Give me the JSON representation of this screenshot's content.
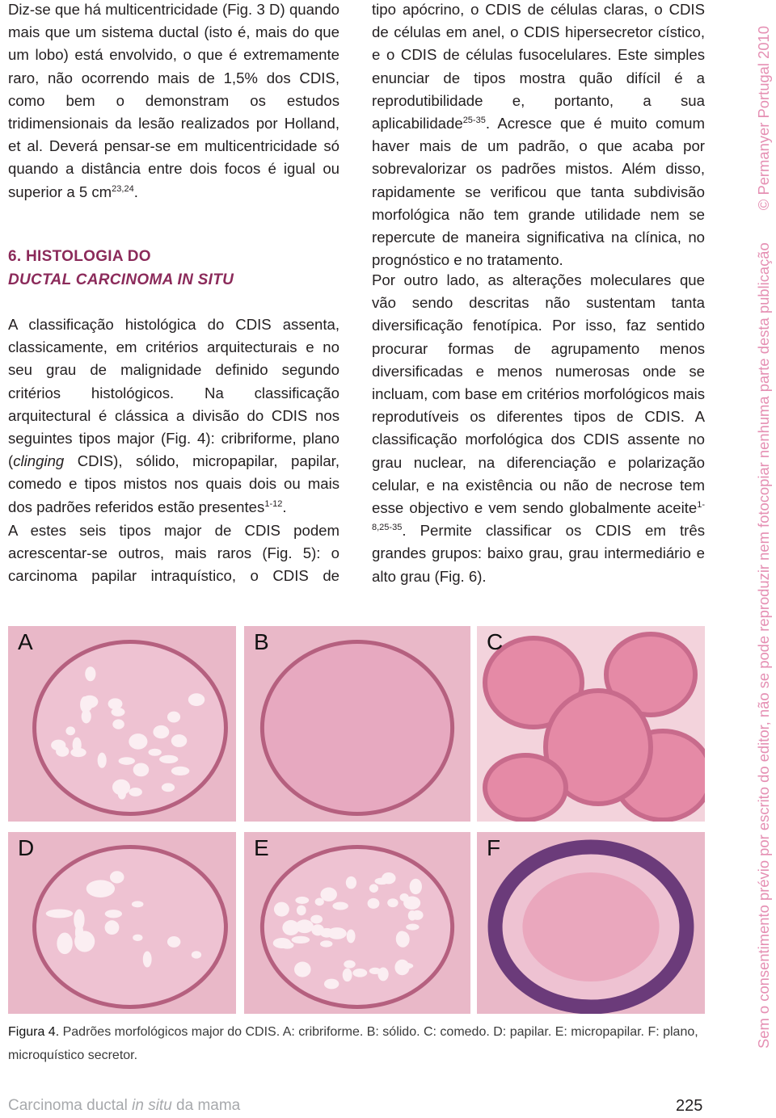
{
  "column_left": {
    "paragraphs": [
      [
        "Diz-se que há multicentricidade (Fig. 3 D) quando mais que um sistema ductal (isto é, mais do que um lobo) está envolvido, o que é extremamente raro, não ocorrendo mais de 1,5% dos CDIS, como bem o demonstram os estudos tridimensionais da lesão realizados por Holland, et al. Deverá pensar-se em multicentricidade só quando a distância entre dois focos é igual ou superior a 5 cm",
        "23,24",
        "."
      ],
      [
        "A classificação histológica do CDIS assenta, classicamente, em critérios arquitecturais e no seu grau de malignidade definido segundo critérios histológicos. Na classificação arquitectural é clássica a divisão do CDIS nos seguintes tipos major (Fig. 4): cribriforme, plano (",
        "clinging",
        " CDIS), sólido, micropapilar, papilar, comedo e tipos mistos nos quais dois ou mais dos padrões referidos estão presentes",
        "1-12",
        "."
      ],
      [
        "A estes seis tipos major de CDIS podem acrescentar-se outros, mais raros (Fig. 5): o carcinoma papilar intraquístico, o CDIS de"
      ]
    ],
    "heading": [
      "6. HISTOLOGIA DO",
      "DUCTAL CARCINOMA IN SITU"
    ]
  },
  "column_right": {
    "paragraphs": [
      [
        "tipo apócrino, o CDIS de células claras, o CDIS de células em anel, o CDIS hipersecretor cístico, e o CDIS de células fusocelulares. Este simples enunciar de tipos mostra quão difícil é a reprodutibilidade e, portanto, a sua aplicabilidade",
        "25-35",
        ". Acresce que é muito comum haver mais de um padrão, o que acaba por sobrevalorizar os padrões mistos. Além disso, rapidamente se verificou que tanta subdivisão morfológica não tem grande utilidade nem se repercute de maneira significativa na clínica, no prognóstico e no tratamento."
      ],
      [
        "Por outro lado, as alterações moleculares que vão sendo descritas não sustentam tanta diversificação fenotípica. Por isso, faz sentido procurar formas de agrupamento menos diversificadas e menos numerosas onde se incluam, com base em critérios morfológicos mais reprodutíveis os diferentes tipos de CDIS. A classificação morfológica dos CDIS assente no grau nuclear, na diferenciação e polarização celular, e na existência ou não de necrose tem esse objectivo e vem sendo globalmente aceite",
        "1-8,25-35",
        ". Permite classificar os CDIS em três grandes grupos: baixo grau, grau intermediário e alto grau (Fig. 6)."
      ]
    ]
  },
  "figure": {
    "panels": [
      "A",
      "B",
      "C",
      "D",
      "E",
      "F"
    ],
    "caption_label": "Figura 4.",
    "caption": "Padrões morfológicos major do CDIS. A: cribriforme. B: sólido. C: comedo. D: papilar. E: micropapilar. F: plano, microquístico secretor."
  },
  "footer": {
    "title": [
      "Carcinoma ductal ",
      "in situ",
      " da mama"
    ],
    "page_number": "225"
  },
  "side_notice": [
    "Sem o consentimento prévio por escrito do editor, não se pode reproduzir nem fotocopiar nenhuma parte desta publicação",
    "© Permanyer Portugal 2010"
  ]
}
